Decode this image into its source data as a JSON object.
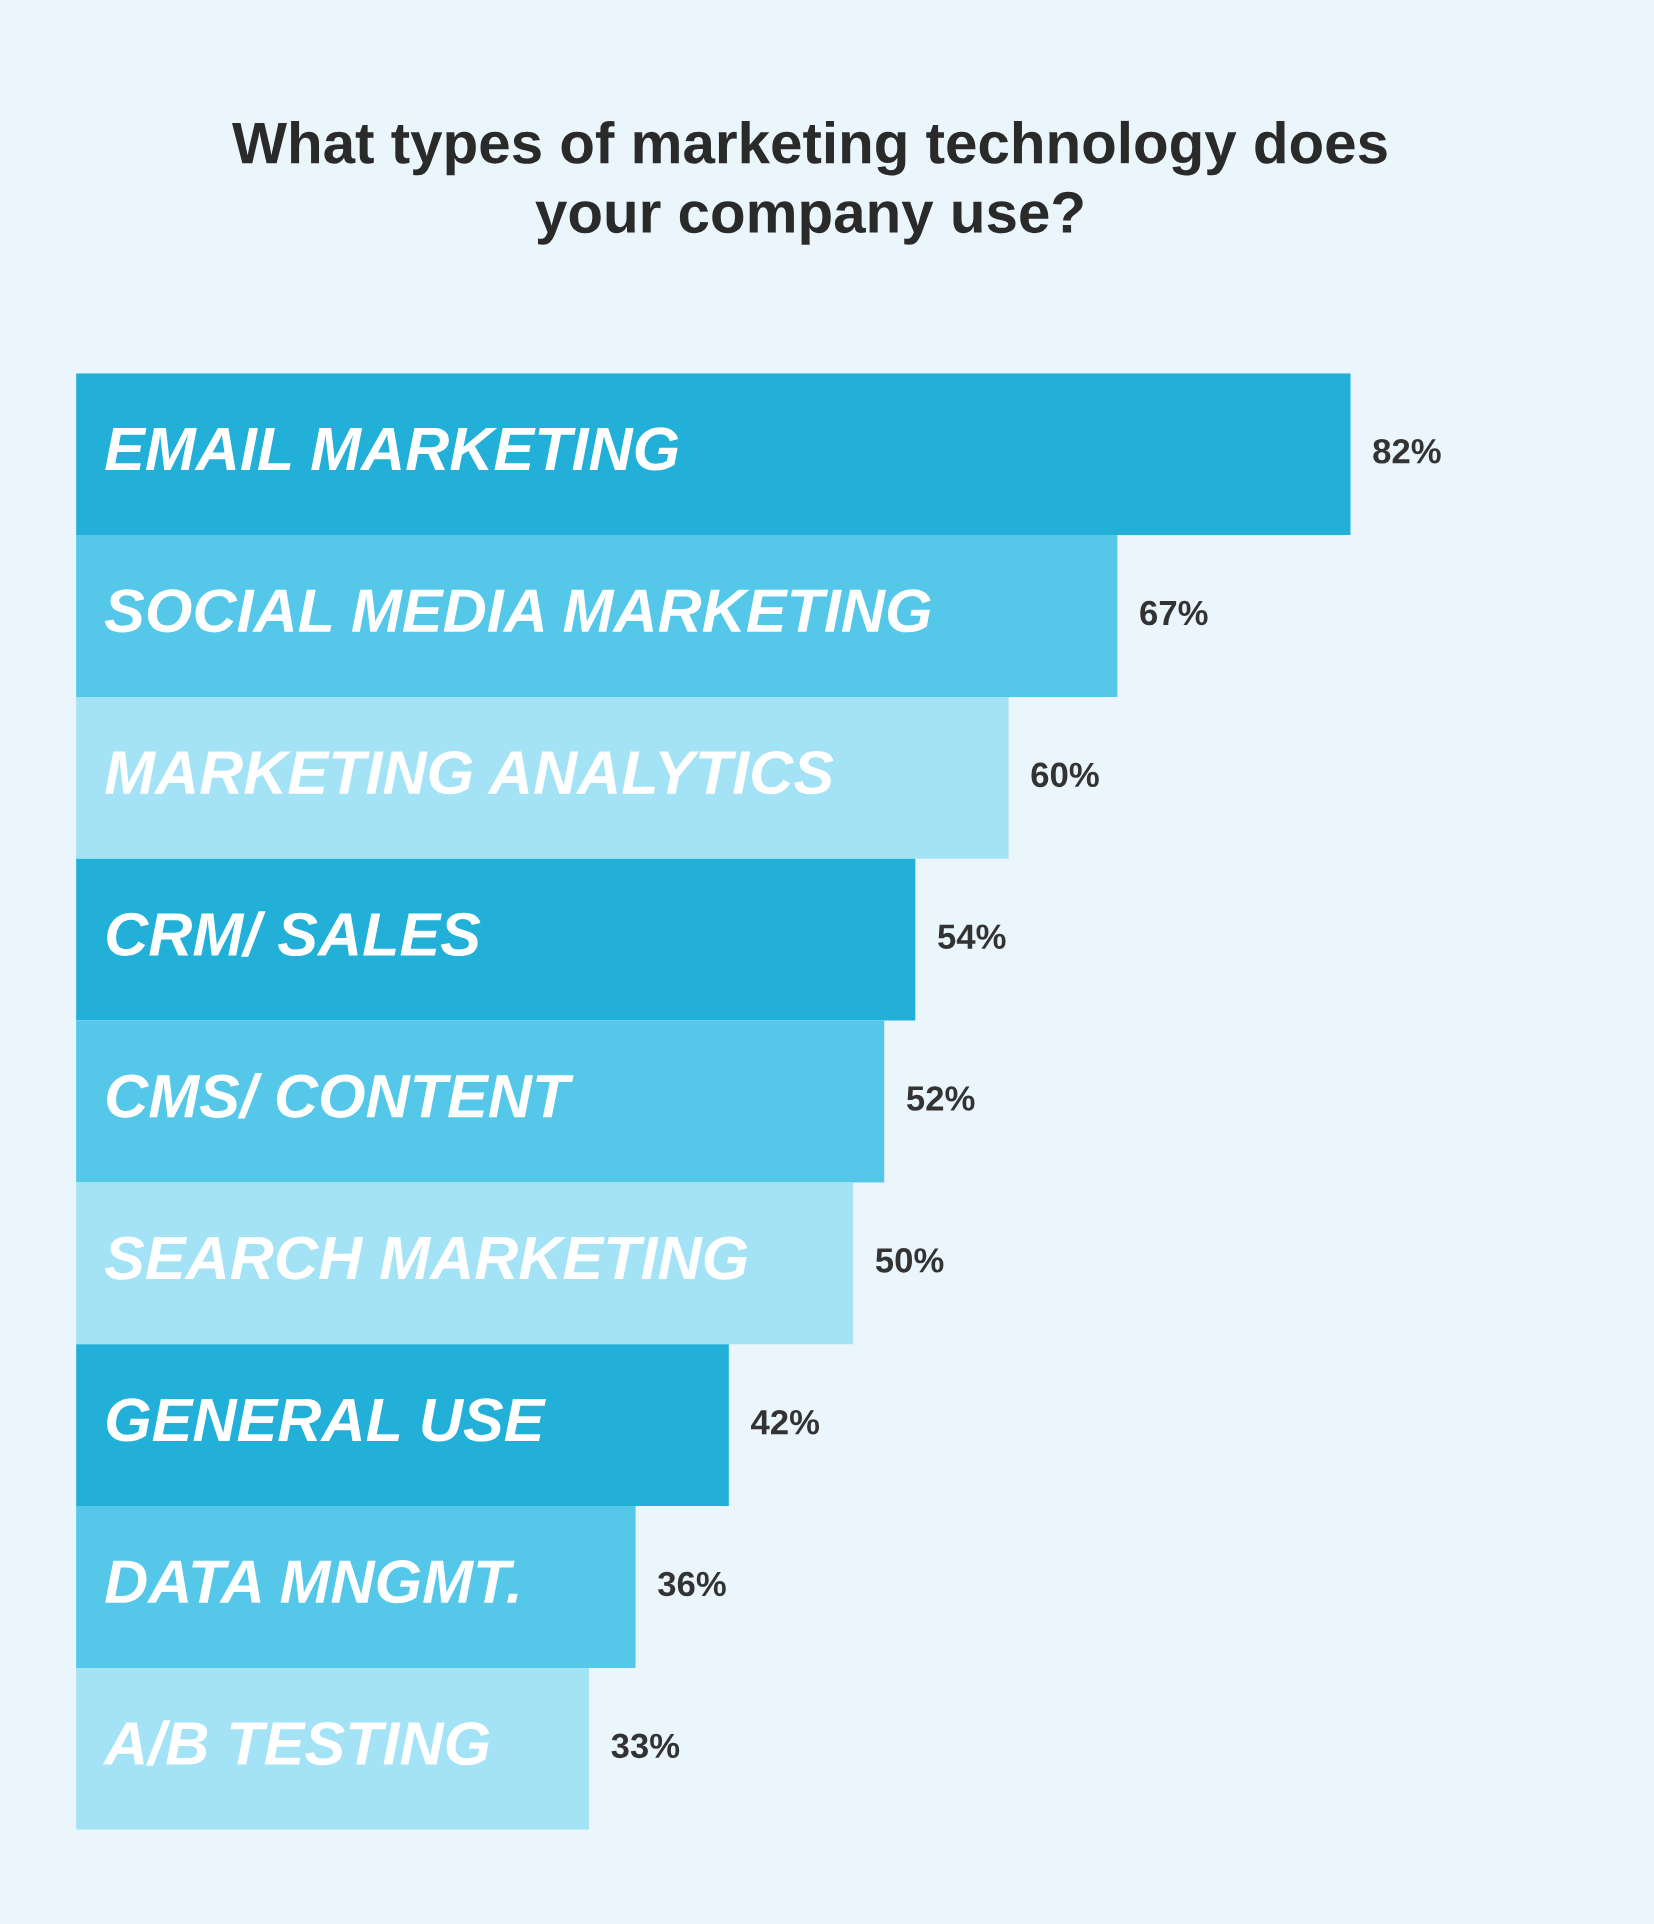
{
  "chart_data": {
    "type": "bar",
    "orientation": "horizontal",
    "title": "What types of marketing technology does\nyour company use?",
    "categories": [
      "EMAIL MARKETING",
      "SOCIAL MEDIA MARKETING",
      "MARKETING ANALYTICS",
      "CRM/ SALES",
      "CMS/ CONTENT",
      "SEARCH MARKETING",
      "GENERAL USE",
      "DATA MNGMT.",
      "A/B TESTING"
    ],
    "values": [
      82,
      67,
      60,
      54,
      52,
      50,
      42,
      36,
      33
    ],
    "colors": [
      "#22b0d9",
      "#55c8ea",
      "#a3e3f5",
      "#22b0d9",
      "#55c8ea",
      "#a3e3f5",
      "#22b0d9",
      "#55c8ea",
      "#a3e3f5"
    ],
    "value_labels": [
      "82%",
      "67%",
      "60%",
      "54%",
      "52%",
      "50%",
      "42%",
      "36%",
      "33%"
    ]
  }
}
